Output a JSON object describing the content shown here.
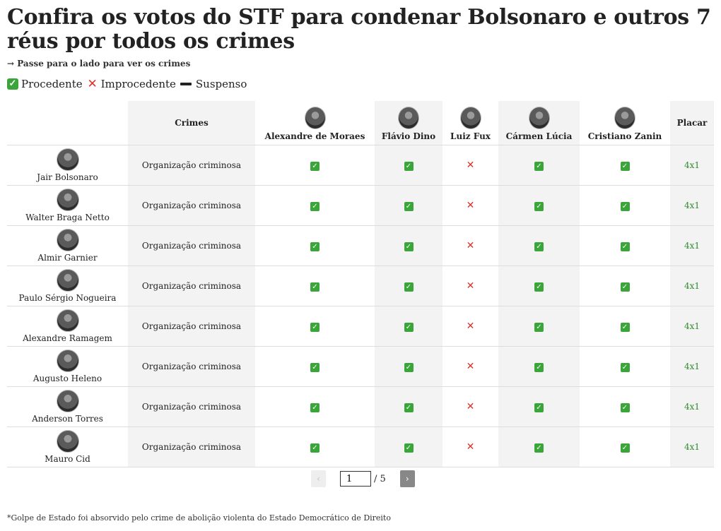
{
  "headline": "Confira os votos do STF para condenar Bolsonaro e outros 7 réus por todos os crimes",
  "subnote": "→ Passe para o lado para ver os crimes",
  "legend": [
    {
      "icon": "check-mark-icon",
      "label": "Procedente"
    },
    {
      "icon": "cross-mark-icon",
      "label": "Improcedente"
    },
    {
      "icon": "minus-icon",
      "label": "Suspenso"
    }
  ],
  "table": {
    "crimes_header": "Crimes",
    "score_header": "Placar",
    "judges": [
      "Alexandre de Moraes",
      "Flávio Dino",
      "Luiz Fux",
      "Cármen Lúcia",
      "Cristiano Zanin"
    ],
    "rows": [
      {
        "name": "Jair Bolsonaro",
        "crime": "Organização criminosa",
        "votes": [
          "procedente",
          "procedente",
          "improcedente",
          "procedente",
          "procedente"
        ],
        "score": "4x1"
      },
      {
        "name": "Walter Braga Netto",
        "crime": "Organização criminosa",
        "votes": [
          "procedente",
          "procedente",
          "improcedente",
          "procedente",
          "procedente"
        ],
        "score": "4x1"
      },
      {
        "name": "Almir Garnier",
        "crime": "Organização criminosa",
        "votes": [
          "procedente",
          "procedente",
          "improcedente",
          "procedente",
          "procedente"
        ],
        "score": "4x1"
      },
      {
        "name": "Paulo Sérgio Nogueira",
        "crime": "Organização criminosa",
        "votes": [
          "procedente",
          "procedente",
          "improcedente",
          "procedente",
          "procedente"
        ],
        "score": "4x1"
      },
      {
        "name": "Alexandre Ramagem",
        "crime": "Organização criminosa",
        "votes": [
          "procedente",
          "procedente",
          "improcedente",
          "procedente",
          "procedente"
        ],
        "score": "4x1"
      },
      {
        "name": "Augusto Heleno",
        "crime": "Organização criminosa",
        "votes": [
          "procedente",
          "procedente",
          "improcedente",
          "procedente",
          "procedente"
        ],
        "score": "4x1"
      },
      {
        "name": "Anderson Torres",
        "crime": "Organização criminosa",
        "votes": [
          "procedente",
          "procedente",
          "improcedente",
          "procedente",
          "procedente"
        ],
        "score": "4x1"
      },
      {
        "name": "Mauro Cid",
        "crime": "Organização criminosa",
        "votes": [
          "procedente",
          "procedente",
          "improcedente",
          "procedente",
          "procedente"
        ],
        "score": "4x1"
      }
    ]
  },
  "pagination": {
    "prev_label": "‹",
    "current_page": "1",
    "total_label": "/ 5",
    "next_label": "›"
  },
  "footnote": "*Golpe de Estado foi absorvido pelo crime de abolição violenta do Estado Democrático de Direito",
  "colors": {
    "procedente": "#3aa63a",
    "improcedente": "#e0302a",
    "score": "#2e8b2e",
    "shaded_column": "#f3f3f3"
  }
}
